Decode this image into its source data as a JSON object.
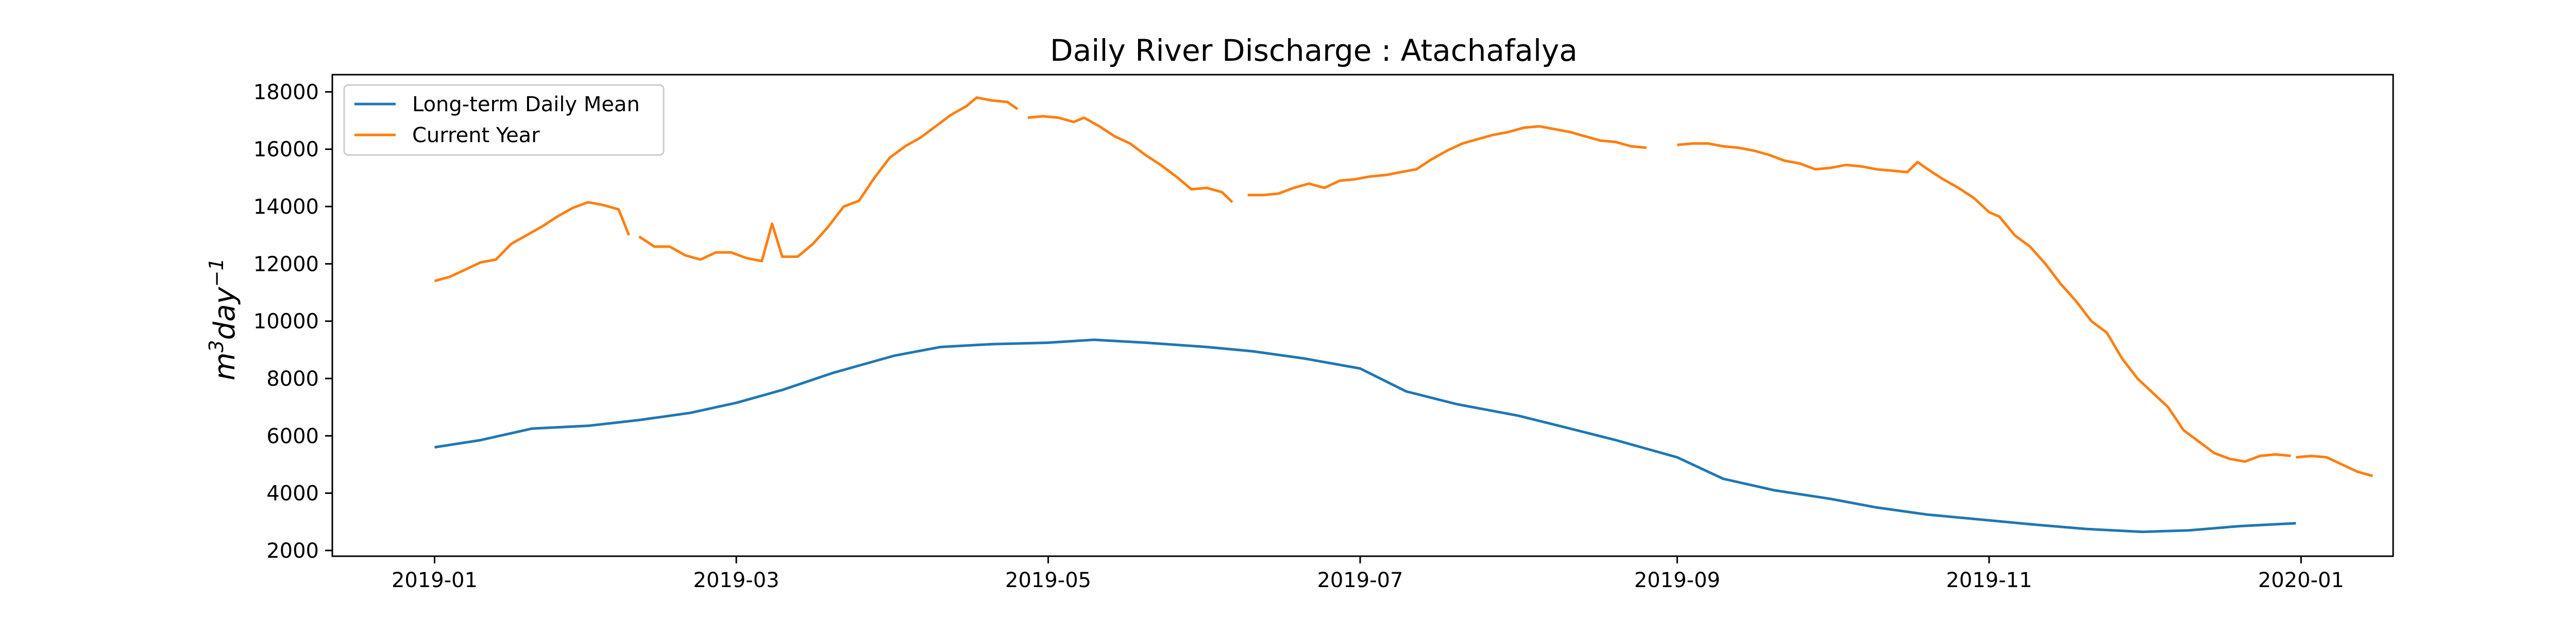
{
  "chart_data": {
    "type": "line",
    "title": "Daily River Discharge : Atachafalya",
    "xlabel": "",
    "ylabel": "m³day⁻¹",
    "ylabel_base": "m",
    "ylabel_sup1": "3",
    "ylabel_mid": "day",
    "ylabel_sup2": "−1",
    "xlim": [
      "2018-12-12",
      "2020-01-19"
    ],
    "ylim": [
      1800,
      18600
    ],
    "x_ticks": [
      "2019-01",
      "2019-03",
      "2019-05",
      "2019-07",
      "2019-09",
      "2019-11",
      "2020-01"
    ],
    "x_tick_dates": [
      "2019-01-01",
      "2019-03-01",
      "2019-05-01",
      "2019-07-01",
      "2019-09-01",
      "2019-11-01",
      "2020-01-01"
    ],
    "y_ticks": [
      2000,
      4000,
      6000,
      8000,
      10000,
      12000,
      14000,
      16000,
      18000
    ],
    "y_tick_labels": [
      "2000",
      "4000",
      "6000",
      "8000",
      "10000",
      "12000",
      "14000",
      "16000",
      "18000"
    ],
    "grid": false,
    "legend_position": "top-left",
    "series": [
      {
        "name": "Long-term Daily Mean",
        "color": "#1f77b4",
        "segments": [
          [
            [
              "2019-01-01",
              5600
            ],
            [
              "2019-01-05",
              5680
            ],
            [
              "2019-01-10",
              5900
            ],
            [
              "2019-01-15",
              6100
            ],
            [
              "2019-01-20",
              6270
            ],
            [
              "2019-01-25",
              6300
            ],
            [
              "2019-01-31",
              6350
            ],
            [
              "2019-02-05",
              6450
            ],
            [
              "2019-02-12",
              6650
            ],
            [
              "2019-02-19",
              6800
            ],
            [
              "2019-02-26",
              7050
            ],
            [
              "2019-03-05",
              7300
            ],
            [
              "2019-03-12",
              7600
            ],
            [
              "2019-03-19",
              7950
            ],
            [
              "2019-03-26",
              8300
            ],
            [
              "2019-04-02",
              8700
            ],
            [
              "2019-04-09",
              9000
            ],
            [
              "2019-04-16",
              9100
            ],
            [
              "2019-04-23",
              9250
            ],
            [
              "2019-04-30",
              9300
            ],
            [
              "2019-05-07",
              9350
            ],
            [
              "2019-05-14",
              9350
            ],
            [
              "2019-05-21",
              9250
            ],
            [
              "2019-05-28",
              9200
            ],
            [
              "2019-06-04",
              9100
            ],
            [
              "2019-06-11",
              9050
            ],
            [
              "2019-06-18",
              8900
            ],
            [
              "2019-06-25",
              8700
            ],
            [
              "2019-07-01",
              8600
            ],
            [
              "2019-07-08",
              8450
            ],
            [
              "2019-07-15",
              8100
            ],
            [
              "2019-07-20",
              7550
            ],
            [
              "2019-07-27",
              7300
            ],
            [
              "2019-08-03",
              7050
            ],
            [
              "2019-08-10",
              6800
            ],
            [
              "2019-08-17",
              6500
            ],
            [
              "2019-08-24",
              6250
            ],
            [
              "2019-08-31",
              6000
            ],
            [
              "2019-09-07",
              5700
            ],
            [
              "2019-09-14",
              5400
            ],
            [
              "2019-09-21",
              5100
            ],
            [
              "2019-09-28",
              4700
            ],
            [
              "2019-10-05",
              4400
            ],
            [
              "2019-10-12",
              4150
            ],
            [
              "2019-10-19",
              3950
            ],
            [
              "2019-10-26",
              3700
            ],
            [
              "2019-11-02",
              3400
            ],
            [
              "2019-11-09",
              3150
            ],
            [
              "2019-11-16",
              3000
            ],
            [
              "2019-11-23",
              2900
            ],
            [
              "2019-11-30",
              2800
            ],
            [
              "2019-12-07",
              2720
            ],
            [
              "2019-12-14",
              2680
            ],
            [
              "2019-12-21",
              2620
            ],
            [
              "2019-12-25",
              2570
            ],
            [
              "2019-12-28",
              2640
            ]
          ]
        ]
      },
      {
        "name": "Current Year",
        "color": "#ff7f0e",
        "segments": []
      }
    ],
    "mean_series_dates": [
      "2019-01-01",
      "2019-01-10",
      "2019-01-20",
      "2019-01-31",
      "2019-02-10",
      "2019-02-20",
      "2019-03-01",
      "2019-03-10",
      "2019-03-20",
      "2019-04-01",
      "2019-04-10",
      "2019-04-20",
      "2019-05-01",
      "2019-05-10",
      "2019-05-20",
      "2019-06-01",
      "2019-06-10",
      "2019-06-20",
      "2019-07-01",
      "2019-07-10",
      "2019-07-20",
      "2019-08-01",
      "2019-08-10",
      "2019-08-20",
      "2019-09-01",
      "2019-09-10",
      "2019-09-20",
      "2019-10-01",
      "2019-10-10",
      "2019-10-20",
      "2019-11-01",
      "2019-11-10",
      "2019-11-20",
      "2019-12-01",
      "2019-12-10",
      "2019-12-20",
      "2019-12-31"
    ],
    "mean_series_values": [
      5600,
      5850,
      6250,
      6350,
      6550,
      6800,
      7150,
      7600,
      8200,
      8800,
      9100,
      9200,
      9250,
      9350,
      9250,
      9100,
      8950,
      8700,
      8350,
      7550,
      7100,
      6700,
      6300,
      5850,
      5250,
      4500,
      4100,
      3800,
      3500,
      3250,
      3050,
      2900,
      2750,
      2650,
      2700,
      2850,
      2950
    ],
    "current_year_segments": [
      [
        [
          "2019-01-01",
          11400
        ],
        [
          "2019-01-04",
          11550
        ],
        [
          "2019-01-07",
          11800
        ],
        [
          "2019-01-10",
          12050
        ],
        [
          "2019-01-13",
          12150
        ],
        [
          "2019-01-16",
          12700
        ],
        [
          "2019-01-19",
          13000
        ],
        [
          "2019-01-22",
          13300
        ],
        [
          "2019-01-25",
          13650
        ],
        [
          "2019-01-28",
          13950
        ],
        [
          "2019-01-31",
          14150
        ],
        [
          "2019-02-03",
          14050
        ],
        [
          "2019-02-06",
          13900
        ],
        [
          "2019-02-08",
          13000
        ]
      ],
      [
        [
          "2019-02-10",
          12950
        ],
        [
          "2019-02-13",
          12600
        ],
        [
          "2019-02-16",
          12600
        ],
        [
          "2019-02-19",
          12300
        ],
        [
          "2019-02-22",
          12150
        ],
        [
          "2019-02-25",
          12400
        ],
        [
          "2019-02-28",
          12400
        ],
        [
          "2019-03-03",
          12200
        ],
        [
          "2019-03-06",
          12100
        ],
        [
          "2019-03-08",
          13400
        ],
        [
          "2019-03-10",
          12250
        ],
        [
          "2019-03-13",
          12250
        ],
        [
          "2019-03-16",
          12700
        ],
        [
          "2019-03-19",
          13300
        ],
        [
          "2019-03-22",
          14000
        ],
        [
          "2019-03-25",
          14200
        ],
        [
          "2019-03-28",
          15000
        ],
        [
          "2019-03-31",
          15700
        ],
        [
          "2019-04-03",
          16100
        ],
        [
          "2019-04-06",
          16400
        ],
        [
          "2019-04-09",
          16800
        ],
        [
          "2019-04-12",
          17200
        ],
        [
          "2019-04-15",
          17500
        ],
        [
          "2019-04-17",
          17800
        ],
        [
          "2019-04-20",
          17700
        ],
        [
          "2019-04-23",
          17650
        ],
        [
          "2019-04-25",
          17400
        ]
      ],
      [
        [
          "2019-04-27",
          17100
        ],
        [
          "2019-04-30",
          17150
        ],
        [
          "2019-05-03",
          17100
        ],
        [
          "2019-05-06",
          16950
        ],
        [
          "2019-05-08",
          17100
        ],
        [
          "2019-05-11",
          16800
        ],
        [
          "2019-05-14",
          16450
        ],
        [
          "2019-05-17",
          16200
        ],
        [
          "2019-05-20",
          15800
        ],
        [
          "2019-05-23",
          15450
        ],
        [
          "2019-05-26",
          15050
        ],
        [
          "2019-05-29",
          14600
        ],
        [
          "2019-06-01",
          14650
        ],
        [
          "2019-06-04",
          14500
        ],
        [
          "2019-06-06",
          14150
        ]
      ],
      [
        [
          "2019-06-09",
          14400
        ],
        [
          "2019-06-12",
          14400
        ],
        [
          "2019-06-15",
          14450
        ],
        [
          "2019-06-18",
          14650
        ],
        [
          "2019-06-21",
          14800
        ],
        [
          "2019-06-24",
          14650
        ],
        [
          "2019-06-27",
          14900
        ],
        [
          "2019-06-30",
          14950
        ],
        [
          "2019-07-03",
          15050
        ],
        [
          "2019-07-06",
          15100
        ],
        [
          "2019-07-09",
          15200
        ],
        [
          "2019-07-12",
          15300
        ],
        [
          "2019-07-15",
          15650
        ],
        [
          "2019-07-18",
          15950
        ],
        [
          "2019-07-21",
          16200
        ],
        [
          "2019-07-24",
          16350
        ],
        [
          "2019-07-27",
          16500
        ],
        [
          "2019-07-30",
          16600
        ],
        [
          "2019-08-02",
          16750
        ],
        [
          "2019-08-05",
          16800
        ],
        [
          "2019-08-08",
          16700
        ],
        [
          "2019-08-11",
          16600
        ],
        [
          "2019-08-14",
          16450
        ],
        [
          "2019-08-17",
          16300
        ],
        [
          "2019-08-20",
          16250
        ],
        [
          "2019-08-23",
          16100
        ],
        [
          "2019-08-26",
          16050
        ]
      ],
      [
        [
          "2019-09-01",
          16150
        ],
        [
          "2019-09-04",
          16200
        ],
        [
          "2019-09-07",
          16200
        ],
        [
          "2019-09-10",
          16100
        ],
        [
          "2019-09-13",
          16050
        ],
        [
          "2019-09-16",
          15950
        ],
        [
          "2019-09-19",
          15800
        ],
        [
          "2019-09-22",
          15600
        ],
        [
          "2019-09-25",
          15500
        ],
        [
          "2019-09-28",
          15300
        ],
        [
          "2019-10-01",
          15350
        ],
        [
          "2019-10-04",
          15450
        ],
        [
          "2019-10-07",
          15400
        ],
        [
          "2019-10-10",
          15300
        ],
        [
          "2019-10-13",
          15250
        ],
        [
          "2019-10-16",
          15200
        ],
        [
          "2019-10-18",
          15550
        ],
        [
          "2019-10-20",
          15300
        ],
        [
          "2019-10-23",
          14950
        ],
        [
          "2019-10-26",
          14650
        ],
        [
          "2019-10-29",
          14300
        ],
        [
          "2019-11-01",
          13800
        ],
        [
          "2019-11-03",
          13650
        ],
        [
          "2019-11-06",
          13000
        ],
        [
          "2019-11-09",
          12600
        ],
        [
          "2019-11-12",
          12000
        ],
        [
          "2019-11-15",
          11300
        ],
        [
          "2019-11-18",
          10700
        ],
        [
          "2019-11-21",
          10000
        ],
        [
          "2019-11-24",
          9600
        ],
        [
          "2019-11-27",
          8700
        ],
        [
          "2019-11-30",
          8000
        ],
        [
          "2019-12-03",
          7500
        ],
        [
          "2019-12-06",
          7000
        ],
        [
          "2019-12-09",
          6200
        ],
        [
          "2019-12-12",
          5800
        ],
        [
          "2019-12-15",
          5400
        ],
        [
          "2019-12-18",
          5200
        ],
        [
          "2019-12-21",
          5100
        ],
        [
          "2019-12-24",
          5300
        ],
        [
          "2019-12-27",
          5350
        ],
        [
          "2019-12-30",
          5300
        ]
      ],
      [
        [
          "2019-12-31",
          5250
        ],
        [
          "2020-01-03",
          5300
        ],
        [
          "2020-01-06",
          5250
        ],
        [
          "2020-01-09",
          5000
        ],
        [
          "2020-01-12",
          4750
        ],
        [
          "2020-01-15",
          4600
        ]
      ]
    ],
    "current_year_plot_dates": [
      "2019-01-01",
      "2019-01-04",
      "2019-01-07",
      "2019-01-10",
      "2019-01-13",
      "2019-01-16",
      "2019-01-19",
      "2019-01-22",
      "2019-01-25",
      "2019-01-28",
      "2019-01-31",
      "2019-02-03",
      "2019-02-06"
    ],
    "current_year": [
      {
        "segment": 1,
        "points": [
          [
            "2019-01-01",
            11400
          ],
          [
            "2019-01-05",
            11650
          ],
          [
            "2019-01-10",
            12050
          ],
          [
            "2019-01-14",
            12200
          ],
          [
            "2019-01-17",
            12750
          ],
          [
            "2019-01-21",
            13150
          ],
          [
            "2019-01-24",
            13500
          ],
          [
            "2019-01-27",
            13850
          ],
          [
            "2019-01-30",
            14100
          ],
          [
            "2019-02-01",
            14150
          ],
          [
            "2019-02-04",
            14000
          ],
          [
            "2019-02-07",
            13900
          ],
          [
            "2019-02-09",
            13000
          ]
        ]
      },
      {
        "segment": 2,
        "points": [
          [
            "2019-02-11",
            12950
          ],
          [
            "2019-02-14",
            12600
          ],
          [
            "2019-02-18",
            12650
          ],
          [
            "2019-02-22",
            12200
          ],
          [
            "2019-02-25",
            12400
          ],
          [
            "2019-02-28",
            12450
          ],
          [
            "2019-03-04",
            12200
          ],
          [
            "2019-03-07",
            12100
          ],
          [
            "2019-03-09",
            13450
          ],
          [
            "2019-03-11",
            12250
          ],
          [
            "2019-03-14",
            12250
          ],
          [
            "2019-03-17",
            12700
          ],
          [
            "2019-03-20",
            13200
          ],
          [
            "2019-03-23",
            13900
          ],
          [
            "2019-03-26",
            14200
          ],
          [
            "2019-03-29",
            15000
          ],
          [
            "2019-04-01",
            15600
          ],
          [
            "2019-04-05",
            16100
          ],
          [
            "2019-04-09",
            16500
          ],
          [
            "2019-04-13",
            17100
          ],
          [
            "2019-04-17",
            17700
          ],
          [
            "2019-04-20",
            17800
          ],
          [
            "2019-04-24",
            17650
          ],
          [
            "2019-04-26",
            17450
          ]
        ]
      },
      {
        "segment": 3,
        "points": [
          [
            "2019-04-28",
            17100
          ],
          [
            "2019-05-02",
            17150
          ],
          [
            "2019-05-06",
            17050
          ],
          [
            "2019-05-09",
            16950
          ],
          [
            "2019-05-11",
            17100
          ],
          [
            "2019-05-14",
            16850
          ],
          [
            "2019-05-17",
            16500
          ],
          [
            "2019-05-20",
            16200
          ],
          [
            "2019-05-24",
            15800
          ],
          [
            "2019-05-27",
            15400
          ],
          [
            "2019-05-30",
            14950
          ],
          [
            "2019-06-01",
            14600
          ],
          [
            "2019-06-04",
            14650
          ],
          [
            "2019-06-07",
            14500
          ],
          [
            "2019-06-09",
            14150
          ]
        ]
      }
    ]
  }
}
